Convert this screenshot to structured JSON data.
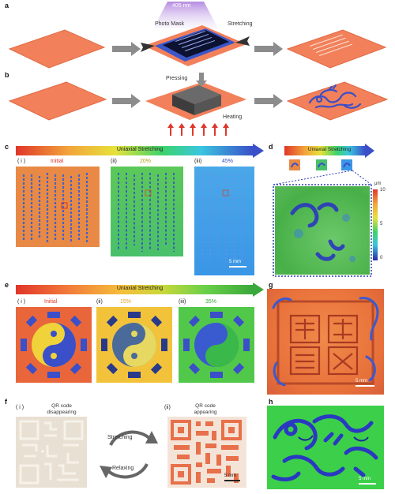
{
  "panels": {
    "a": "a",
    "b": "b",
    "c": "c",
    "d": "d",
    "e": "e",
    "f": "f",
    "g": "g",
    "h": "h"
  },
  "panel_a": {
    "uv_label": "405 nm",
    "mask_label": "Photo Mask",
    "stretch_label": "Stretching"
  },
  "panel_b": {
    "press_label": "Pressing",
    "heat_label": "Heating"
  },
  "panel_c": {
    "bar_label": "Uniaxial Stretching",
    "sub": [
      {
        "roman": "( i )",
        "pct": "Initial"
      },
      {
        "roman": "(ii)",
        "pct": "20%"
      },
      {
        "roman": "(iii)",
        "pct": "45%"
      }
    ],
    "scale": "5 mm"
  },
  "panel_d": {
    "bar_label": "Uniaxial Stretching",
    "unit": "μm",
    "ticks": [
      "10",
      "5",
      "0"
    ]
  },
  "panel_e": {
    "bar_label": "Uniaxial Stretching",
    "sub": [
      {
        "roman": "( i )",
        "pct": "Initial"
      },
      {
        "roman": "(ii)",
        "pct": "15%"
      },
      {
        "roman": "(iii)",
        "pct": "35%"
      }
    ]
  },
  "panel_f": {
    "left_roman": "( i )",
    "left_caption_1": "QR code",
    "left_caption_2": "disappearing",
    "right_roman": "(ii)",
    "right_caption_1": "QR code",
    "right_caption_2": "appearing",
    "stretch_label": "Stretching",
    "release_label": "Relaxing",
    "scale": "5 mm"
  },
  "panel_g": {
    "scale": "5 mm"
  },
  "panel_h": {
    "scale": "5 mm"
  },
  "colors": {
    "orange": "#f2805a",
    "blue": "#3a4fc8",
    "green": "#3bd36b",
    "yellow": "#f5d33a",
    "red": "#e0362a",
    "arrow_gray": "#8c8c8c"
  }
}
